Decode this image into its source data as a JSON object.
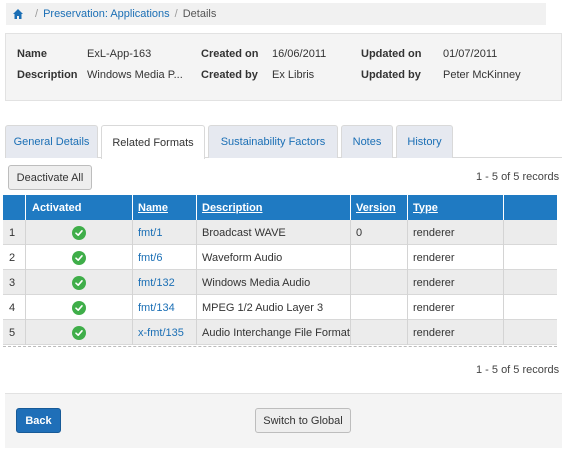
{
  "breadcrumb": {
    "home_icon": "home-icon",
    "items": [
      "Preservation: Applications",
      "Details"
    ]
  },
  "info": {
    "name_label": "Name",
    "name_value": "ExL-App-163",
    "description_label": "Description",
    "description_value": "Windows Media P...",
    "created_on_label": "Created on",
    "created_on_value": "16/06/2011",
    "created_by_label": "Created by",
    "created_by_value": "Ex Libris",
    "updated_on_label": "Updated on",
    "updated_on_value": "01/07/2011",
    "updated_by_label": "Updated by",
    "updated_by_value": "Peter McKinney"
  },
  "tabs": [
    {
      "label": "General Details",
      "active": false
    },
    {
      "label": "Related Formats",
      "active": true
    },
    {
      "label": "Sustainability Factors",
      "active": false
    },
    {
      "label": "Notes",
      "active": false
    },
    {
      "label": "History",
      "active": false
    }
  ],
  "toolbar": {
    "deactivate_label": "Deactivate All",
    "records_top": "1 - 5 of 5 records",
    "records_bottom": "1 - 5 of 5 records"
  },
  "table": {
    "columns": [
      "",
      "Activated",
      "Name",
      "Description",
      "Version",
      "Type",
      ""
    ],
    "rows": [
      {
        "num": "1",
        "activated_icon": "check-circle-icon",
        "name": "fmt/1",
        "description": "Broadcast WAVE",
        "version": "0",
        "type": "renderer"
      },
      {
        "num": "2",
        "activated_icon": "check-circle-icon",
        "name": "fmt/6",
        "description": "Waveform Audio",
        "version": "",
        "type": "renderer"
      },
      {
        "num": "3",
        "activated_icon": "check-circle-icon",
        "name": "fmt/132",
        "description": "Windows Media Audio",
        "version": "",
        "type": "renderer"
      },
      {
        "num": "4",
        "activated_icon": "check-circle-icon",
        "name": "fmt/134",
        "description": "MPEG 1/2 Audio Layer 3",
        "version": "",
        "type": "renderer"
      },
      {
        "num": "5",
        "activated_icon": "check-circle-icon",
        "name": "x-fmt/135",
        "description": "Audio Interchange File Format",
        "version": "",
        "type": "renderer"
      }
    ]
  },
  "footer": {
    "back_label": "Back",
    "switch_label": "Switch to Global"
  },
  "colors": {
    "header_blue": "#1f7ac2",
    "link_blue": "#1b6fb5",
    "check_green": "#3fae49",
    "primary_button": "#1f6fb8"
  }
}
